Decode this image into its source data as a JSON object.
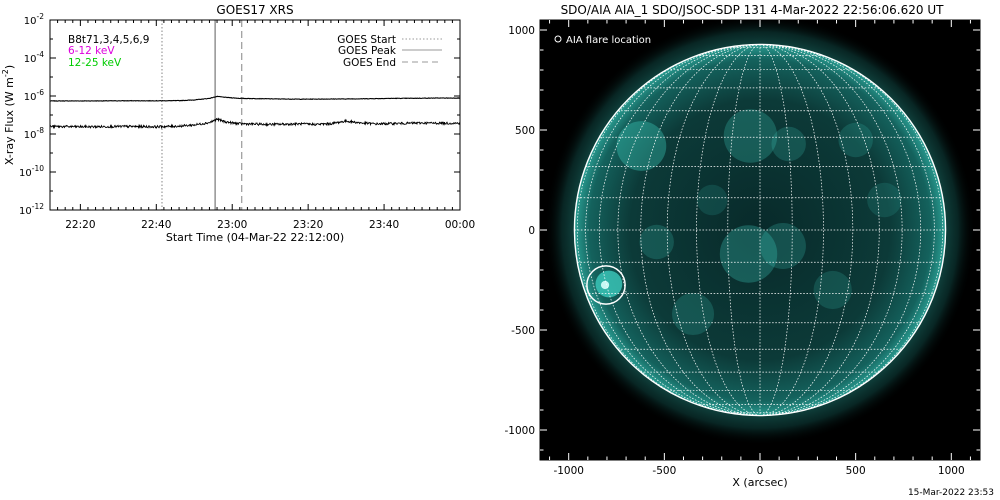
{
  "footer_timestamp": "15-Mar-2022 23:53",
  "chart_data": [
    {
      "type": "line",
      "title": "GOES17 XRS",
      "xlabel": "Start Time (04-Mar-22 22:12:00)",
      "ylabel_main": "X-ray Flux (W m",
      "ylabel_sup": "-2",
      "ylabel_close": ")",
      "y_scale": "log",
      "ylim": [
        1e-12,
        0.01
      ],
      "y_ticks": [
        {
          "value": 1e-12,
          "base": "10",
          "exp": "-12"
        },
        {
          "value": 1e-10,
          "base": "10",
          "exp": "-10"
        },
        {
          "value": 1e-08,
          "base": "10",
          "exp": "-8"
        },
        {
          "value": 1e-06,
          "base": "10",
          "exp": "-6"
        },
        {
          "value": 0.0001,
          "base": "10",
          "exp": "-4"
        },
        {
          "value": 0.01,
          "base": "10",
          "exp": "-2"
        }
      ],
      "x_start_minutes": 0,
      "x_end_minutes": 108,
      "x_ticks": [
        {
          "minutes": 8,
          "label": "22:20"
        },
        {
          "minutes": 28,
          "label": "22:40"
        },
        {
          "minutes": 48,
          "label": "23:00"
        },
        {
          "minutes": 68,
          "label": "23:20"
        },
        {
          "minutes": 88,
          "label": "23:40"
        },
        {
          "minutes": 108,
          "label": "00:00"
        }
      ],
      "sat_label": "B8t71,3,4,5,6,9",
      "series": [
        {
          "name": "6-12 keV",
          "color": "#dd00dd",
          "x": [
            0,
            10,
            20,
            28,
            34,
            38,
            42,
            44,
            46,
            48,
            50,
            52,
            56,
            60,
            66,
            72,
            78,
            84,
            90,
            96,
            102,
            108
          ],
          "values": [
            5.5e-07,
            5.5e-07,
            5.6e-07,
            5.6e-07,
            5.7e-07,
            6.2e-07,
            7.5e-07,
            9.5e-07,
            8.6e-07,
            8e-07,
            7.5e-07,
            7.4e-07,
            7.2e-07,
            7e-07,
            6.8e-07,
            6.9e-07,
            7e-07,
            7.2e-07,
            7.5e-07,
            7.6e-07,
            7.8e-07,
            7.8e-07
          ]
        },
        {
          "name": "12-25 keV",
          "color": "#00cc00",
          "x": [
            0,
            10,
            20,
            28,
            34,
            38,
            42,
            44,
            46,
            48,
            50,
            54,
            58,
            62,
            66,
            70,
            74,
            78,
            82,
            86,
            92,
            98,
            104,
            108
          ],
          "values": [
            2.5e-08,
            2.4e-08,
            2.5e-08,
            2.4e-08,
            2.6e-08,
            3e-08,
            4e-08,
            6e-08,
            4.5e-08,
            3.8e-08,
            3.5e-08,
            3.3e-08,
            3.2e-08,
            3.3e-08,
            3.4e-08,
            3.2e-08,
            3.5e-08,
            4.8e-08,
            3.8e-08,
            3.4e-08,
            3.6e-08,
            3.8e-08,
            3.7e-08,
            3.7e-08
          ]
        }
      ],
      "events": [
        {
          "name": "GOES Start",
          "minutes": 29.5,
          "style": "dotted",
          "color": "#999999"
        },
        {
          "name": "GOES Peak",
          "minutes": 43.5,
          "style": "solid",
          "color": "#999999"
        },
        {
          "name": "GOES End",
          "minutes": 50.5,
          "style": "dashed",
          "color": "#999999"
        }
      ]
    },
    {
      "type": "image",
      "title": "SDO/AIA AIA_1 SDO/JSOC-SDP 131  4-Mar-2022 22:56:06.620 UT",
      "xlabel": "X (arcsec)",
      "xlim": [
        -1150,
        1150
      ],
      "ylim": [
        -1150,
        1050
      ],
      "x_ticks": [
        -1000,
        -500,
        0,
        500,
        1000
      ],
      "y_ticks": [
        -1000,
        -500,
        0,
        500,
        1000
      ],
      "solar_radius_arcsec": 970,
      "grid_spacing_deg": 10,
      "legend_label": "AIA flare location",
      "flare_location": {
        "x": -805,
        "y": -275,
        "radius_arcsec": 100
      },
      "colors": {
        "background": "#000000",
        "disk": "#0d3d3b",
        "bright": "#2ec4b6",
        "grid": "#ffffff"
      }
    }
  ]
}
